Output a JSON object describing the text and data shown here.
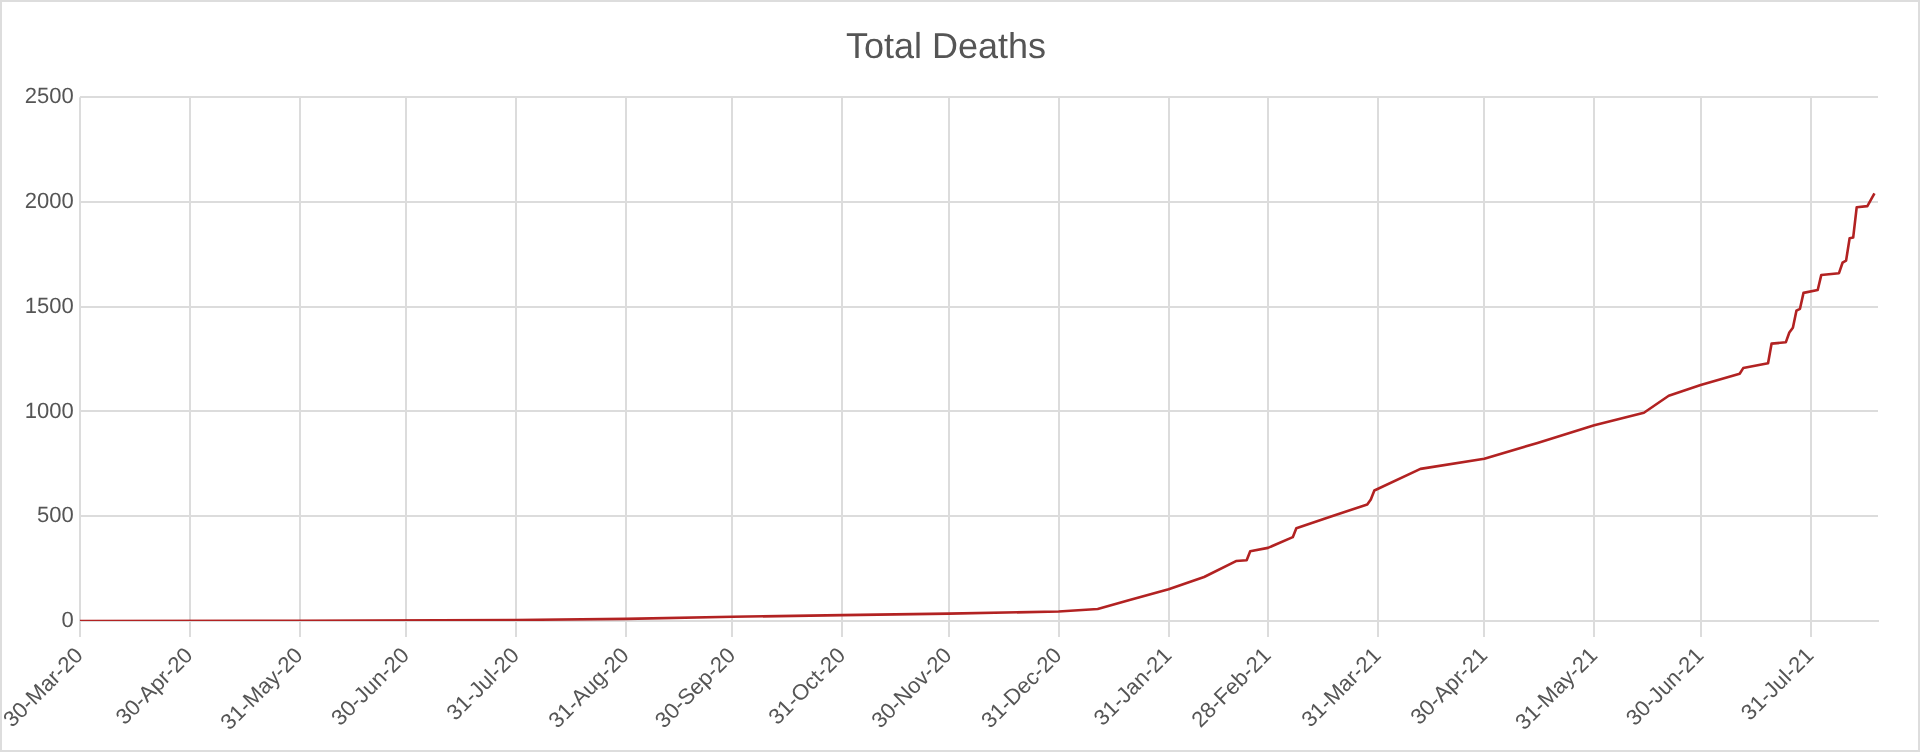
{
  "chart_data": {
    "type": "line",
    "title": "Total Deaths",
    "x": [
      "2020-03-30",
      "2020-05-31",
      "2020-07-31",
      "2020-08-31",
      "2020-09-30",
      "2020-10-31",
      "2020-11-30",
      "2020-12-31",
      "2021-01-11",
      "2021-01-20",
      "2021-01-31",
      "2021-02-10",
      "2021-02-19",
      "2021-02-22",
      "2021-02-23",
      "2021-02-28",
      "2021-03-07",
      "2021-03-08",
      "2021-03-18",
      "2021-03-28",
      "2021-03-29",
      "2021-03-30",
      "2021-04-12",
      "2021-04-30",
      "2021-05-15",
      "2021-05-31",
      "2021-06-14",
      "2021-06-21",
      "2021-06-30",
      "2021-07-11",
      "2021-07-12",
      "2021-07-19",
      "2021-07-20",
      "2021-07-24",
      "2021-07-25",
      "2021-07-26",
      "2021-07-27",
      "2021-07-28",
      "2021-07-29",
      "2021-08-02",
      "2021-08-03",
      "2021-08-08",
      "2021-08-09",
      "2021-08-10",
      "2021-08-11",
      "2021-08-12",
      "2021-08-13",
      "2021-08-16",
      "2021-08-18"
    ],
    "series": [
      {
        "color": "#b22222",
        "values": [
          0,
          1,
          5,
          10,
          20,
          28,
          35,
          45,
          57,
          100,
          151,
          210,
          286,
          290,
          333,
          349,
          400,
          443,
          500,
          556,
          580,
          623,
          726,
          774,
          850,
          934,
          994,
          1075,
          1126,
          1180,
          1207,
          1230,
          1324,
          1330,
          1377,
          1400,
          1481,
          1490,
          1566,
          1580,
          1651,
          1660,
          1710,
          1720,
          1827,
          1830,
          1975,
          1980,
          2041
        ]
      }
    ],
    "xlim": [
      "2020-03-30",
      "2021-08-19"
    ],
    "xticks": [
      {
        "value": "2020-03-30",
        "label": "30-Mar-20"
      },
      {
        "value": "2020-04-30",
        "label": "30-Apr-20"
      },
      {
        "value": "2020-05-31",
        "label": "31-May-20"
      },
      {
        "value": "2020-06-30",
        "label": "30-Jun-20"
      },
      {
        "value": "2020-07-31",
        "label": "31-Jul-20"
      },
      {
        "value": "2020-08-31",
        "label": "31-Aug-20"
      },
      {
        "value": "2020-09-30",
        "label": "30-Sep-20"
      },
      {
        "value": "2020-10-31",
        "label": "31-Oct-20"
      },
      {
        "value": "2020-11-30",
        "label": "30-Nov-20"
      },
      {
        "value": "2020-12-31",
        "label": "31-Dec-20"
      },
      {
        "value": "2021-01-31",
        "label": "31-Jan-21"
      },
      {
        "value": "2021-02-28",
        "label": "28-Feb-21"
      },
      {
        "value": "2021-03-31",
        "label": "31-Mar-21"
      },
      {
        "value": "2021-04-30",
        "label": "30-Apr-21"
      },
      {
        "value": "2021-05-31",
        "label": "31-May-21"
      },
      {
        "value": "2021-06-30",
        "label": "30-Jun-21"
      },
      {
        "value": "2021-07-31",
        "label": "31-Jul-21"
      }
    ],
    "ylim": [
      0,
      2500
    ],
    "yticks": [
      0,
      500,
      1000,
      1500,
      2000,
      2500
    ],
    "grid": true,
    "legend": false,
    "marker": "none",
    "line_style": "solid"
  }
}
